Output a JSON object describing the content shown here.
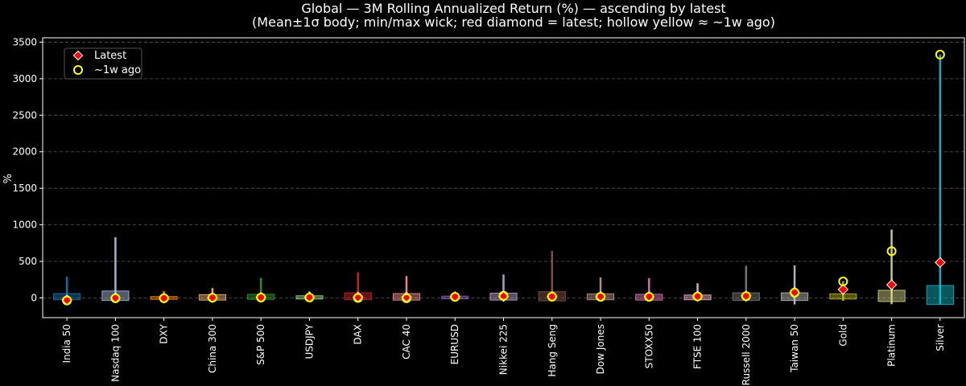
{
  "chart_data": {
    "type": "box",
    "title": "Global — 3M Rolling Annualized Return (%) — ascending by latest",
    "subtitle": "(Mean±1σ body; min/max wick; red diamond = latest; hollow yellow ≈ ~1w ago)",
    "ylabel": "%",
    "xlabel": "",
    "ylim": [
      -270,
      3560
    ],
    "yticks": [
      0,
      500,
      1000,
      1500,
      2000,
      2500,
      3000,
      3500
    ],
    "grid": true,
    "legend": {
      "position": "top-left",
      "entries": [
        {
          "label": "Latest",
          "marker": "red-diamond"
        },
        {
          "label": "~1w ago",
          "marker": "hollow-yellow-circle"
        }
      ]
    },
    "series": [
      {
        "name": "India 50",
        "color": "#1f77b4",
        "min": -10,
        "max": 290,
        "body_low": -25,
        "body_high": 60,
        "latest": -28,
        "week_ago": -35
      },
      {
        "name": "Nasdaq 100",
        "color": "#aec7e8",
        "min": -20,
        "max": 830,
        "body_low": -35,
        "body_high": 95,
        "latest": 2,
        "week_ago": -5
      },
      {
        "name": "DXY",
        "color": "#ff7f0e",
        "min": -25,
        "max": 95,
        "body_low": -20,
        "body_high": 20,
        "latest": -3,
        "week_ago": -5
      },
      {
        "name": "China 300",
        "color": "#ffbb78",
        "min": -25,
        "max": 135,
        "body_low": -30,
        "body_high": 45,
        "latest": 5,
        "week_ago": 2
      },
      {
        "name": "S&P 500",
        "color": "#2ca02c",
        "min": -15,
        "max": 275,
        "body_low": -20,
        "body_high": 50,
        "latest": 8,
        "week_ago": 5
      },
      {
        "name": "USDJPY",
        "color": "#98df8a",
        "min": -20,
        "max": 90,
        "body_low": -15,
        "body_high": 30,
        "latest": 10,
        "week_ago": 5
      },
      {
        "name": "DAX",
        "color": "#d62728",
        "min": -20,
        "max": 350,
        "body_low": -25,
        "body_high": 70,
        "latest": 12,
        "week_ago": 0
      },
      {
        "name": "CAC 40",
        "color": "#ff9896",
        "min": -25,
        "max": 300,
        "body_low": -30,
        "body_high": 60,
        "latest": 12,
        "week_ago": -5
      },
      {
        "name": "EURUSD",
        "color": "#9467bd",
        "min": -20,
        "max": 45,
        "body_low": -12,
        "body_high": 25,
        "latest": 18,
        "week_ago": 15
      },
      {
        "name": "Nikkei 225",
        "color": "#c5b0d5",
        "min": -45,
        "max": 320,
        "body_low": -30,
        "body_high": 65,
        "latest": 18,
        "week_ago": 30
      },
      {
        "name": "Hang Seng",
        "color": "#8c564b",
        "min": -50,
        "max": 645,
        "body_low": -40,
        "body_high": 85,
        "latest": 20,
        "week_ago": 18
      },
      {
        "name": "Dow Jones",
        "color": "#c49c94",
        "min": -30,
        "max": 280,
        "body_low": -25,
        "body_high": 55,
        "latest": 20,
        "week_ago": 15
      },
      {
        "name": "STOXX50",
        "color": "#e377c2",
        "min": -35,
        "max": 270,
        "body_low": -30,
        "body_high": 50,
        "latest": 20,
        "week_ago": 15
      },
      {
        "name": "FTSE 100",
        "color": "#f7b6d2",
        "min": -40,
        "max": 200,
        "body_low": -25,
        "body_high": 40,
        "latest": 22,
        "week_ago": 20
      },
      {
        "name": "Russell 2000",
        "color": "#7f7f7f",
        "min": -55,
        "max": 440,
        "body_low": -35,
        "body_high": 70,
        "latest": 28,
        "week_ago": 25
      },
      {
        "name": "Taiwan 50",
        "color": "#c7c7c7",
        "min": -90,
        "max": 445,
        "body_low": -35,
        "body_high": 70,
        "latest": 78,
        "week_ago": 72
      },
      {
        "name": "Gold",
        "color": "#bcbd22",
        "min": -40,
        "max": 230,
        "body_low": -15,
        "body_high": 55,
        "latest": 115,
        "week_ago": 225
      },
      {
        "name": "Platinum",
        "color": "#dbdb8d",
        "min": -85,
        "max": 935,
        "body_low": -50,
        "body_high": 105,
        "latest": 180,
        "week_ago": 640
      },
      {
        "name": "Silver",
        "color": "#17becf",
        "min": -90,
        "max": 3330,
        "body_low": -90,
        "body_high": 170,
        "latest": 485,
        "week_ago": 3330
      }
    ]
  }
}
